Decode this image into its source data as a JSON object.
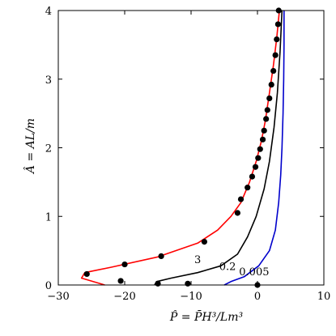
{
  "chart_data": {
    "type": "line",
    "xlabel": "P̂ = P̄H³/Lm³",
    "ylabel": "Â = AL/m",
    "xlim": [
      -30,
      10
    ],
    "ylim": [
      0,
      4
    ],
    "xticks": [
      -30,
      -20,
      -10,
      0,
      10
    ],
    "yticks": [
      0,
      1,
      2,
      3,
      4
    ],
    "grid": false,
    "series": [
      {
        "name": "3",
        "color": "#ff0000",
        "values": [
          [
            -23,
            0.0
          ],
          [
            -26.5,
            0.1
          ],
          [
            -26,
            0.18
          ],
          [
            -22,
            0.26
          ],
          [
            -15,
            0.41
          ],
          [
            -9,
            0.61
          ],
          [
            -6,
            0.8
          ],
          [
            -4,
            1.0
          ],
          [
            -2.5,
            1.2
          ],
          [
            -1.2,
            1.5
          ],
          [
            -0.2,
            1.8
          ],
          [
            0.6,
            2.1
          ],
          [
            1.2,
            2.4
          ],
          [
            1.8,
            2.8
          ],
          [
            2.4,
            3.2
          ],
          [
            2.9,
            3.6
          ],
          [
            3.3,
            4.0
          ]
        ]
      },
      {
        "name": "3",
        "color": "#000000",
        "markers": true,
        "values": [
          [
            -25.7,
            0.16
          ],
          [
            -20.6,
            0.06
          ],
          [
            -20,
            0.3
          ],
          [
            -15,
            0.02
          ],
          [
            -14.5,
            0.42
          ],
          [
            -10.5,
            0.02
          ],
          [
            -8,
            0.63
          ],
          [
            0,
            0.0
          ],
          [
            -3,
            1.05
          ],
          [
            -2.5,
            1.25
          ],
          [
            -1.5,
            1.42
          ],
          [
            -0.8,
            1.58
          ],
          [
            -0.3,
            1.72
          ],
          [
            0.1,
            1.85
          ],
          [
            0.4,
            1.98
          ],
          [
            0.8,
            2.12
          ],
          [
            1.0,
            2.25
          ],
          [
            1.3,
            2.42
          ],
          [
            1.5,
            2.55
          ],
          [
            1.8,
            2.72
          ],
          [
            2.1,
            2.92
          ],
          [
            2.4,
            3.12
          ],
          [
            2.7,
            3.35
          ],
          [
            2.9,
            3.58
          ],
          [
            3.1,
            3.8
          ],
          [
            3.2,
            4.0
          ]
        ]
      },
      {
        "name": "0.2",
        "color": "#000000",
        "values": [
          [
            -15.5,
            0.0
          ],
          [
            -15.2,
            0.05
          ],
          [
            -13,
            0.1
          ],
          [
            -9,
            0.18
          ],
          [
            -5.5,
            0.28
          ],
          [
            -3,
            0.45
          ],
          [
            -1.5,
            0.7
          ],
          [
            -0.2,
            1.0
          ],
          [
            1.0,
            1.4
          ],
          [
            1.8,
            1.8
          ],
          [
            2.5,
            2.3
          ],
          [
            3.0,
            2.8
          ],
          [
            3.4,
            3.4
          ],
          [
            3.7,
            4.0
          ]
        ]
      },
      {
        "name": "0.005",
        "color": "#0000cc",
        "values": [
          [
            -5,
            0.0
          ],
          [
            -4,
            0.05
          ],
          [
            -2,
            0.12
          ],
          [
            0.2,
            0.28
          ],
          [
            1.8,
            0.5
          ],
          [
            2.7,
            0.8
          ],
          [
            3.2,
            1.2
          ],
          [
            3.5,
            1.6
          ],
          [
            3.7,
            2.0
          ],
          [
            3.85,
            2.5
          ],
          [
            3.95,
            3.0
          ],
          [
            4.0,
            3.5
          ],
          [
            4.0,
            4.0
          ]
        ]
      }
    ],
    "curve_labels": [
      {
        "text": "3",
        "x": -9,
        "y": 0.38
      },
      {
        "text": "0.2",
        "x": -4.5,
        "y": 0.28
      },
      {
        "text": "0.005",
        "x": -0.5,
        "y": 0.2
      }
    ]
  }
}
